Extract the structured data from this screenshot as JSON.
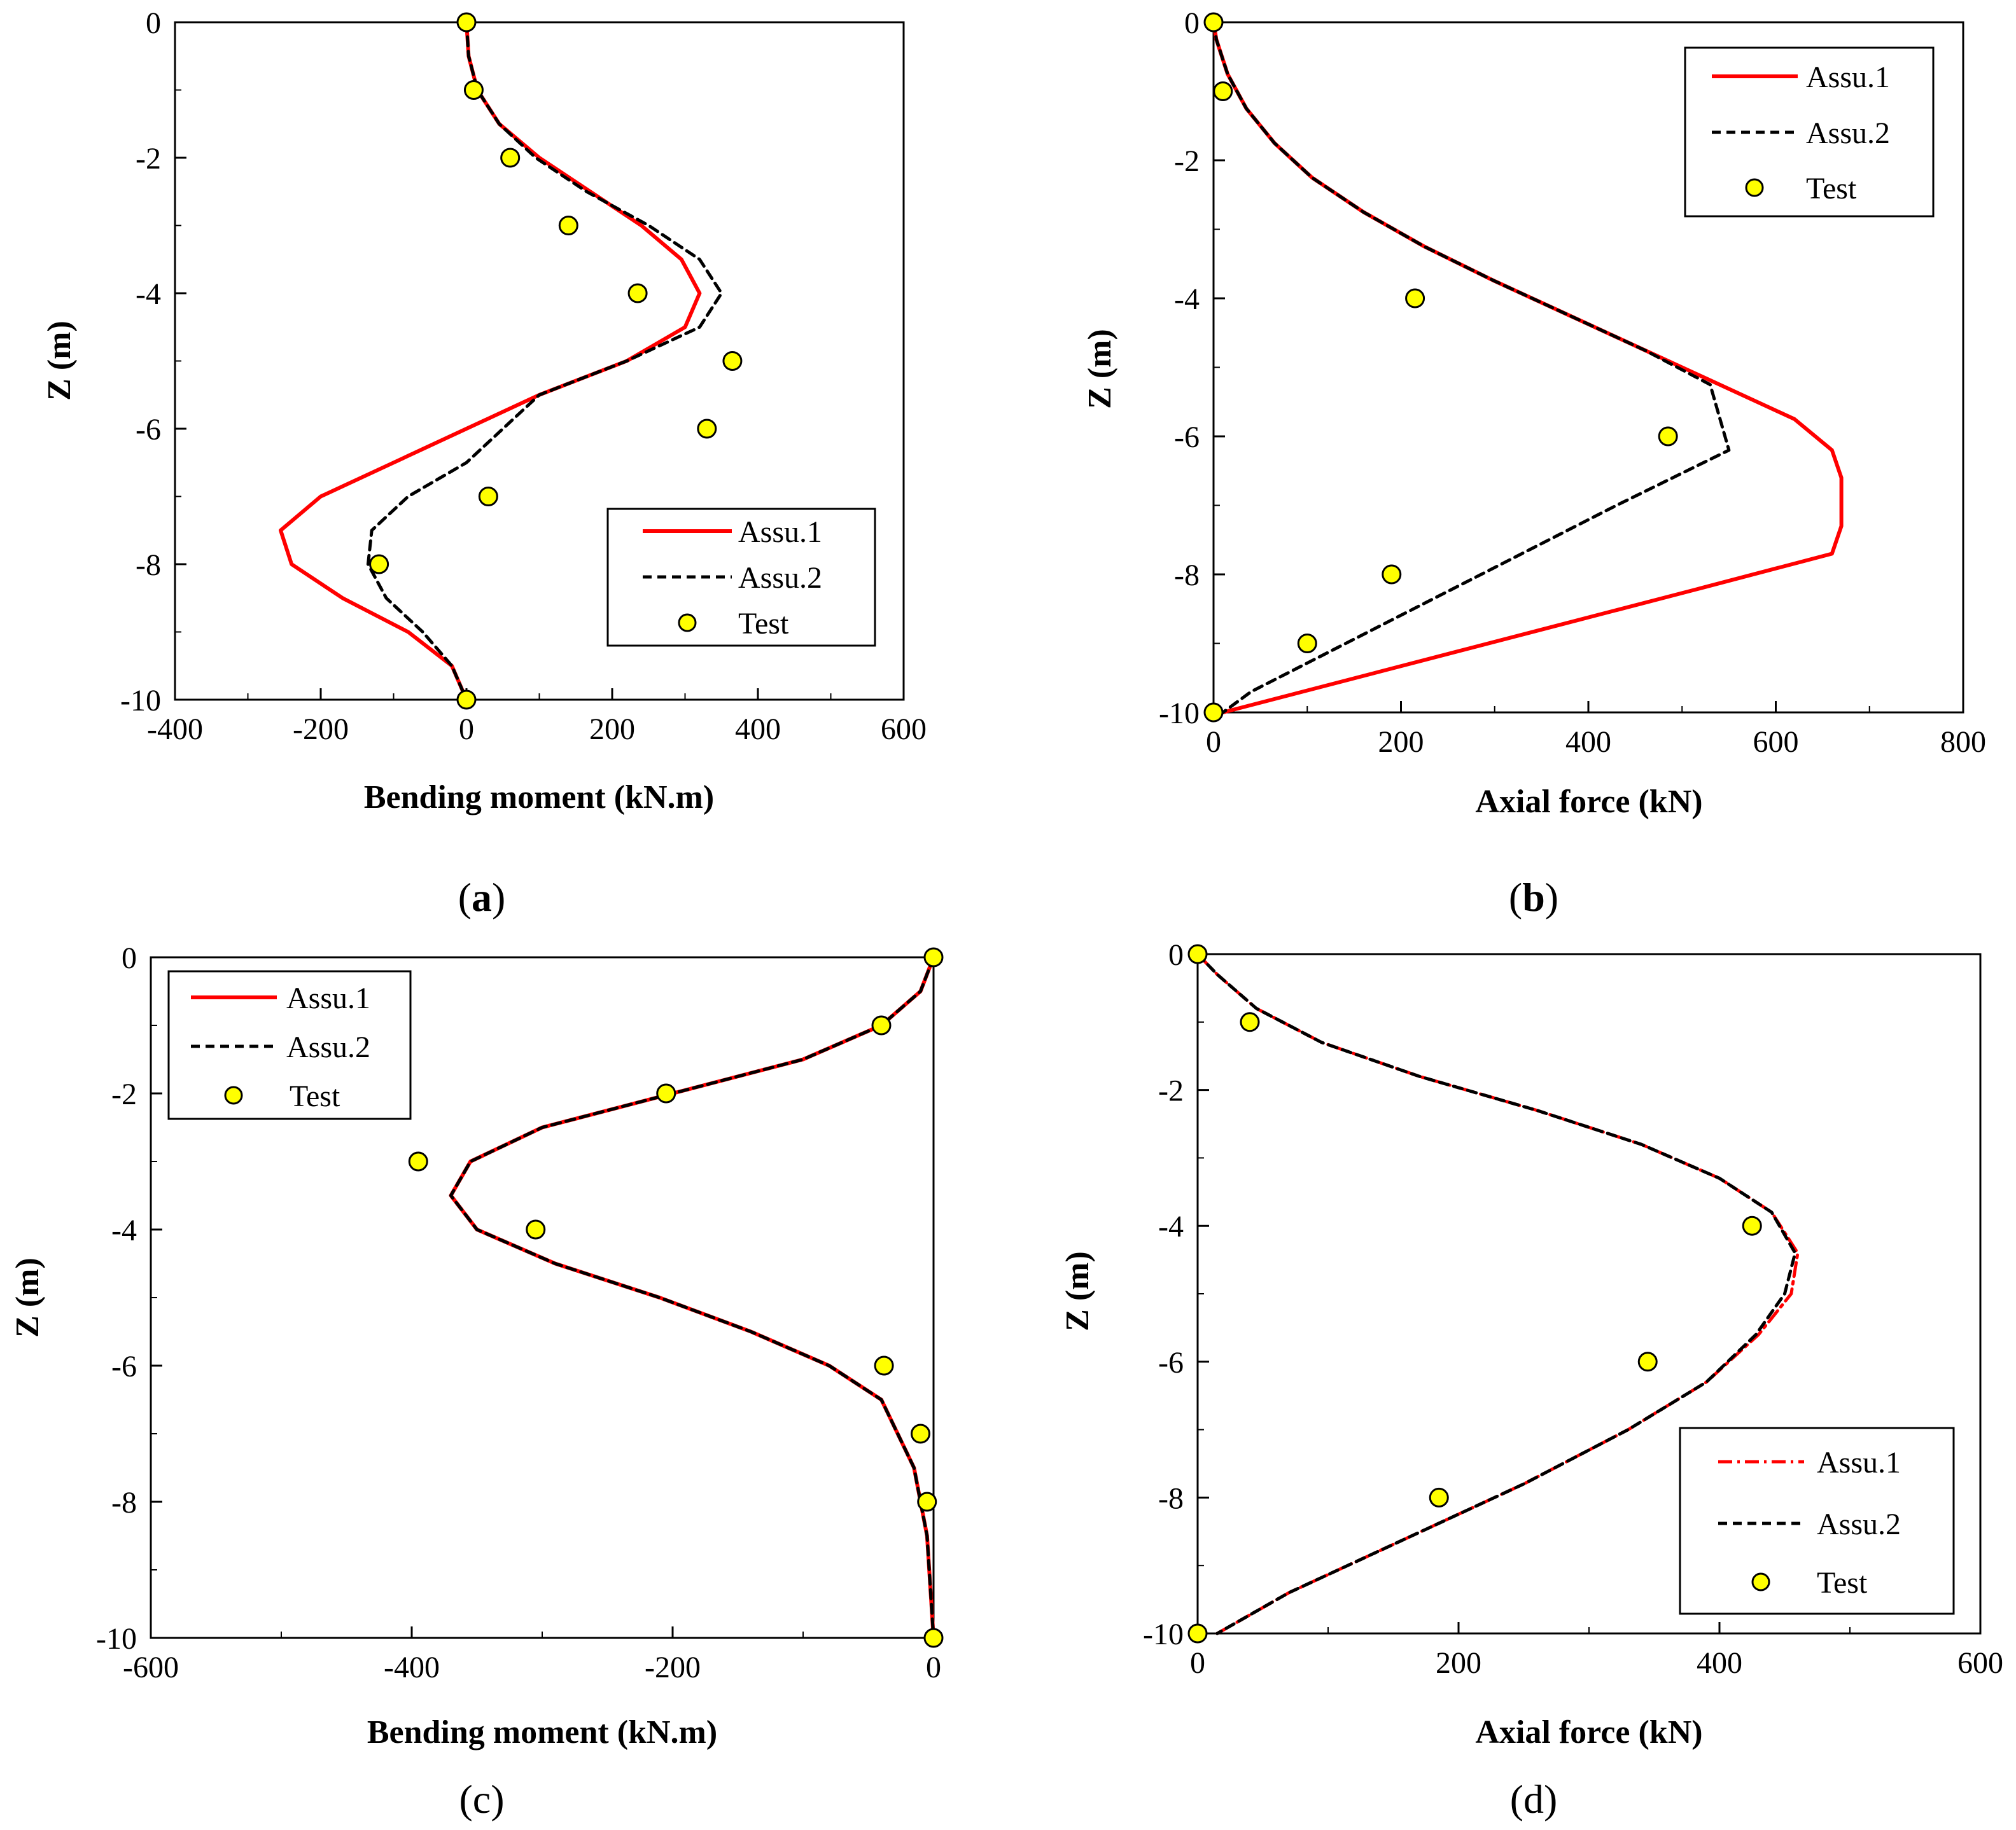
{
  "colors": {
    "assu1": "#ff0000",
    "assu2": "#000000",
    "test_fill": "#ffff00",
    "test_stroke": "#000000"
  },
  "panels": [
    {
      "label_open": "(",
      "label_letter": "a",
      "label_close": ")",
      "chart_data": {
        "type": "line",
        "xlabel": "Bending moment (kN.m)",
        "ylabel": "Z (m)",
        "xlim": [
          -400,
          600
        ],
        "ylim": [
          -10,
          0
        ],
        "xticks": [
          -400,
          -200,
          0,
          200,
          400,
          600
        ],
        "yticks": [
          0,
          -2,
          -4,
          -6,
          -8,
          -10
        ],
        "xtick_labels": [
          "-400",
          "-200",
          "0",
          "200",
          "400",
          "600"
        ],
        "ytick_labels": [
          "0",
          "-2",
          "-4",
          "-6",
          "-8",
          "-10"
        ],
        "legend": [
          "Assu.1",
          "Assu.2",
          "Test"
        ],
        "series": [
          {
            "name": "Assu.1",
            "style": "solid",
            "x": [
              0,
              3,
              15,
              45,
              100,
              170,
              240,
              295,
              320,
              300,
              220,
              100,
              0,
              -100,
              -200,
              -255,
              -240,
              -170,
              -80,
              -20,
              0
            ],
            "y": [
              0,
              -0.5,
              -1,
              -1.5,
              -2,
              -2.5,
              -3,
              -3.5,
              -4,
              -4.5,
              -5,
              -5.5,
              -6,
              -6.5,
              -7,
              -7.5,
              -8,
              -8.5,
              -9,
              -9.5,
              -10
            ]
          },
          {
            "name": "Assu.2",
            "style": "dashed",
            "x": [
              0,
              3,
              15,
              45,
              95,
              165,
              250,
              320,
              350,
              320,
              220,
              100,
              0,
              -80,
              -130,
              -135,
              -110,
              -60,
              -20,
              0
            ],
            "y": [
              0,
              -0.5,
              -1,
              -1.5,
              -2,
              -2.5,
              -3,
              -3.5,
              -4,
              -4.5,
              -5,
              -5.5,
              -6.5,
              -7,
              -7.5,
              -8,
              -8.5,
              -9,
              -9.5,
              -10
            ]
          },
          {
            "name": "Test",
            "style": "marker",
            "x": [
              0,
              10,
              60,
              140,
              235,
              365,
              330,
              30,
              -120,
              0
            ],
            "y": [
              0,
              -1,
              -2,
              -3,
              -4,
              -5,
              -6,
              -7,
              -8,
              -10
            ]
          }
        ]
      }
    },
    {
      "label_open": "(",
      "label_letter": "b",
      "label_close": ")",
      "chart_data": {
        "type": "line",
        "xlabel": "Axial force (kN)",
        "ylabel": "Z (m)",
        "xlim": [
          0,
          800
        ],
        "ylim": [
          -10,
          0
        ],
        "xticks": [
          0,
          200,
          400,
          600,
          800
        ],
        "yticks": [
          0,
          -2,
          -4,
          -6,
          -8,
          -10
        ],
        "xtick_labels": [
          "0",
          "200",
          "400",
          "600",
          "800"
        ],
        "ytick_labels": [
          "0",
          "-2",
          "-4",
          "-6",
          "-8",
          "-10"
        ],
        "legend": [
          "Assu.1",
          "Assu.2",
          "Test"
        ],
        "series": [
          {
            "name": "Assu.1",
            "style": "solid",
            "x": [
              0,
              3,
              15,
              35,
              65,
              105,
              160,
              225,
              300,
              380,
              460,
              540,
              620,
              660,
              670,
              670,
              660,
              520,
              350,
              180,
              10
            ],
            "y": [
              0,
              -0.25,
              -0.75,
              -1.25,
              -1.75,
              -2.25,
              -2.75,
              -3.25,
              -3.75,
              -4.25,
              -4.75,
              -5.25,
              -5.75,
              -6.2,
              -6.6,
              -7.3,
              -7.7,
              -8.2,
              -8.8,
              -9.4,
              -10
            ]
          },
          {
            "name": "Assu.2",
            "style": "dashed",
            "x": [
              0,
              3,
              15,
              35,
              65,
              105,
              160,
              225,
              300,
              380,
              460,
              530,
              550,
              430,
              300,
              170,
              40,
              10
            ],
            "y": [
              0,
              -0.25,
              -0.75,
              -1.25,
              -1.75,
              -2.25,
              -2.75,
              -3.25,
              -3.75,
              -4.25,
              -4.75,
              -5.25,
              -6.2,
              -7.0,
              -7.9,
              -8.8,
              -9.7,
              -10
            ]
          },
          {
            "name": "Test",
            "style": "marker",
            "x": [
              0,
              10,
              215,
              485,
              190,
              100,
              0
            ],
            "y": [
              0,
              -1,
              -4,
              -6,
              -8,
              -9,
              -10
            ]
          }
        ]
      }
    },
    {
      "label_open": "(",
      "label_letter": "c",
      "label_close": ")",
      "chart_data": {
        "type": "line",
        "xlabel": "Bending moment (kN.m)",
        "ylabel": "Z (m)",
        "xlim": [
          -600,
          0
        ],
        "ylim": [
          -10,
          0
        ],
        "xticks": [
          -600,
          -400,
          -200,
          0
        ],
        "yticks": [
          0,
          -2,
          -4,
          -6,
          -8,
          -10
        ],
        "xtick_labels": [
          "-600",
          "-400",
          "-200",
          "0"
        ],
        "ytick_labels": [
          "0",
          "-2",
          "-4",
          "-6",
          "-8",
          "-10"
        ],
        "legend": [
          "Assu.1",
          "Assu.2",
          "Test"
        ],
        "series": [
          {
            "name": "Assu.1",
            "style": "solid",
            "x": [
              0,
              -10,
              -40,
              -100,
              -200,
              -300,
              -355,
              -370,
              -350,
              -290,
              -210,
              -140,
              -80,
              -40,
              -15,
              -5,
              0
            ],
            "y": [
              0,
              -0.5,
              -1,
              -1.5,
              -2,
              -2.5,
              -3,
              -3.5,
              -4,
              -4.5,
              -5,
              -5.5,
              -6,
              -6.5,
              -7.5,
              -8.5,
              -10
            ]
          },
          {
            "name": "Assu.2",
            "style": "dashed",
            "x": [
              0,
              -10,
              -40,
              -100,
              -200,
              -300,
              -355,
              -370,
              -350,
              -290,
              -210,
              -140,
              -80,
              -40,
              -15,
              -5,
              0
            ],
            "y": [
              0,
              -0.5,
              -1,
              -1.5,
              -2,
              -2.5,
              -3,
              -3.5,
              -4,
              -4.5,
              -5,
              -5.5,
              -6,
              -6.5,
              -7.5,
              -8.5,
              -10
            ]
          },
          {
            "name": "Test",
            "style": "marker",
            "x": [
              0,
              -40,
              -205,
              -395,
              -305,
              -38,
              -10,
              -5,
              0
            ],
            "y": [
              0,
              -1,
              -2,
              -3,
              -4,
              -6,
              -7,
              -8,
              -10
            ]
          }
        ]
      }
    },
    {
      "label_open": "(",
      "label_letter": "d",
      "label_close": ")",
      "chart_data": {
        "type": "line",
        "xlabel": "Axial force (kN)",
        "ylabel": "Z (m)",
        "xlim": [
          0,
          600
        ],
        "ylim": [
          -10,
          0
        ],
        "xticks": [
          0,
          200,
          400,
          600
        ],
        "yticks": [
          0,
          -2,
          -4,
          -6,
          -8,
          -10
        ],
        "xtick_labels": [
          "0",
          "200",
          "400",
          "600"
        ],
        "ytick_labels": [
          "0",
          "-2",
          "-4",
          "-6",
          "-8",
          "-10"
        ],
        "legend": [
          "Assu.1",
          "Assu.2",
          "Test"
        ],
        "series": [
          {
            "name": "Assu.1",
            "style": "dashdot",
            "x": [
              0,
              15,
              45,
              95,
              170,
              260,
              340,
              400,
              440,
              460,
              455,
              430,
              390,
              330,
              250,
              160,
              70,
              15
            ],
            "y": [
              0,
              -0.3,
              -0.8,
              -1.3,
              -1.8,
              -2.3,
              -2.8,
              -3.3,
              -3.8,
              -4.4,
              -5.0,
              -5.6,
              -6.3,
              -7.0,
              -7.8,
              -8.6,
              -9.4,
              -10
            ]
          },
          {
            "name": "Assu.2",
            "style": "dashed",
            "x": [
              0,
              15,
              45,
              95,
              170,
              260,
              340,
              400,
              440,
              458,
              450,
              428,
              390,
              330,
              250,
              160,
              70,
              15
            ],
            "y": [
              0,
              -0.3,
              -0.8,
              -1.3,
              -1.8,
              -2.3,
              -2.8,
              -3.3,
              -3.8,
              -4.4,
              -5.0,
              -5.6,
              -6.3,
              -7.0,
              -7.8,
              -8.6,
              -9.4,
              -10
            ]
          },
          {
            "name": "Test",
            "style": "marker",
            "x": [
              0,
              40,
              425,
              345,
              185,
              0
            ],
            "y": [
              0,
              -1,
              -4,
              -6,
              -8,
              -10
            ]
          }
        ]
      }
    }
  ]
}
